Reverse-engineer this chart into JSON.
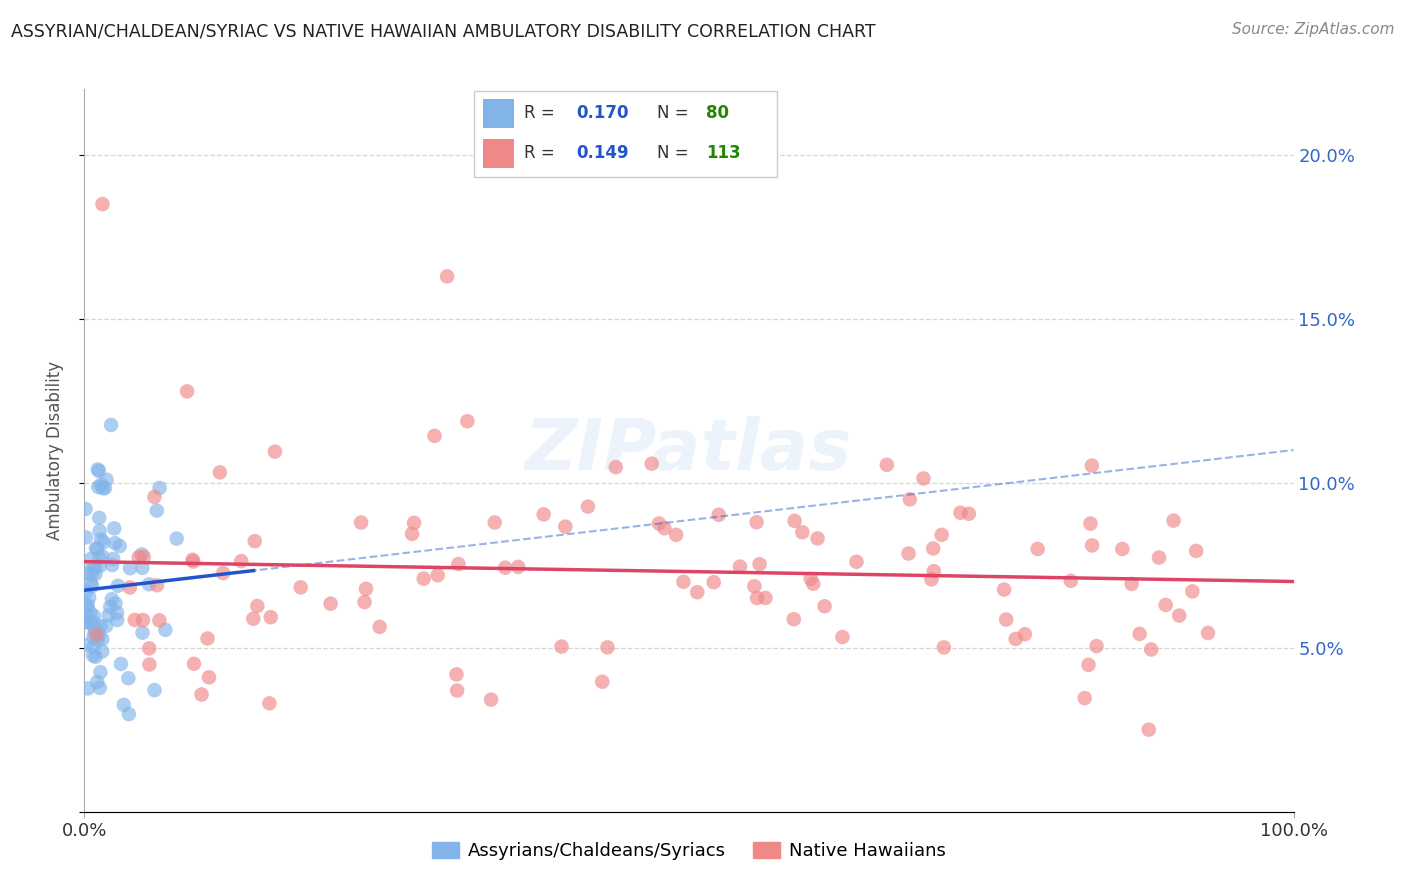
{
  "title": "ASSYRIAN/CHALDEAN/SYRIAC VS NATIVE HAWAIIAN AMBULATORY DISABILITY CORRELATION CHART",
  "source": "Source: ZipAtlas.com",
  "ylabel": "Ambulatory Disability",
  "xlim": [
    0.0,
    1.0
  ],
  "ylim": [
    0.0,
    0.22
  ],
  "ytick_positions": [
    0.0,
    0.05,
    0.1,
    0.15,
    0.2
  ],
  "ytick_labels": [
    "",
    "5.0%",
    "10.0%",
    "15.0%",
    "20.0%"
  ],
  "legend_r1": "0.170",
  "legend_n1": "80",
  "legend_r2": "0.149",
  "legend_n2": "113",
  "series1_label": "Assyrians/Chaldeans/Syriacs",
  "series2_label": "Native Hawaiians",
  "series1_color": "#82b4ea",
  "series2_color": "#f08888",
  "line1_color": "#2255cc",
  "line2_color": "#dd4466",
  "r_color": "#2255cc",
  "n_color": "#228800",
  "background_color": "#ffffff",
  "grid_color": "#cccccc",
  "watermark": "ZIPatlas"
}
